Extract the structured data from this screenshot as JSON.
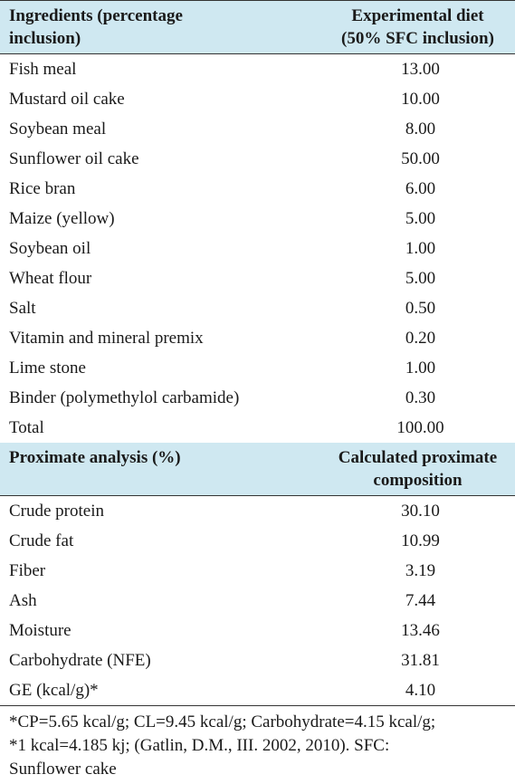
{
  "table1": {
    "header": {
      "left_line1": "Ingredients (percentage",
      "left_line2": "inclusion)",
      "right_line1": "Experimental diet",
      "right_line2": "(50% SFC inclusion)"
    },
    "rows": [
      {
        "label": "Fish meal",
        "value": "13.00"
      },
      {
        "label": "Mustard oil cake",
        "value": "10.00"
      },
      {
        "label": "Soybean meal",
        "value": "8.00"
      },
      {
        "label": "Sunflower oil cake",
        "value": "50.00"
      },
      {
        "label": "Rice bran",
        "value": "6.00"
      },
      {
        "label": "Maize (yellow)",
        "value": "5.00"
      },
      {
        "label": "Soybean oil",
        "value": "1.00"
      },
      {
        "label": "Wheat flour",
        "value": "5.00"
      },
      {
        "label": "Salt",
        "value": "0.50"
      },
      {
        "label": "Vitamin and mineral premix",
        "value": "0.20"
      },
      {
        "label": "Lime stone",
        "value": "1.00"
      },
      {
        "label": "Binder (polymethylol carbamide)",
        "value": "0.30"
      },
      {
        "label": "Total",
        "value": "100.00"
      }
    ]
  },
  "table2": {
    "header": {
      "left_line1": "Proximate analysis (%)",
      "right_line1": "Calculated proximate",
      "right_line2": "composition"
    },
    "rows": [
      {
        "label": "Crude protein",
        "value": "30.10"
      },
      {
        "label": "Crude fat",
        "value": "10.99"
      },
      {
        "label": "Fiber",
        "value": "3.19"
      },
      {
        "label": "Ash",
        "value": "7.44"
      },
      {
        "label": "Moisture",
        "value": "13.46"
      },
      {
        "label": "Carbohydrate (NFE)",
        "value": "31.81"
      },
      {
        "label": "GE (kcal/g)*",
        "value": "4.10"
      }
    ]
  },
  "footnote": {
    "line1": "*CP=5.65 kcal/g; CL=9.45 kcal/g; Carbohydrate=4.15 kcal/g;",
    "line2": "*1 kcal=4.185 kj; (Gatlin, D.M., III. 2002, 2010). SFC:",
    "line3": "Sunflower cake"
  }
}
